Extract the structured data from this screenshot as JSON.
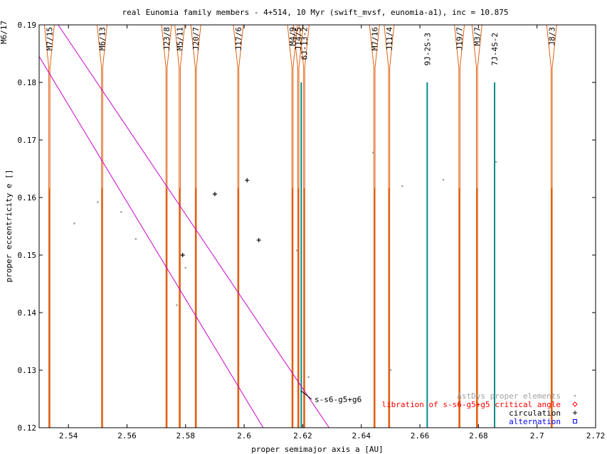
{
  "chart_data": {
    "type": "scatter",
    "title": "real Eunomia family members - 4+514, 10 Myr (swift_mvsf, eunomia-a1), inc = 10.875",
    "xlabel": "proper semimajor axis a [AU]",
    "ylabel": "proper eccentricity e []",
    "xlim": [
      2.53,
      2.72
    ],
    "ylim": [
      0.12,
      0.19
    ],
    "xticks": [
      "2.54",
      "2.56",
      "2.58",
      "2.6",
      "2.62",
      "2.64",
      "2.66",
      "2.68",
      "2.7",
      "2.72"
    ],
    "yticks": [
      "0.12",
      "0.13",
      "0.14",
      "0.15",
      "0.16",
      "0.17",
      "0.18",
      "0.19"
    ],
    "xtick_values": [
      2.54,
      2.56,
      2.58,
      2.6,
      2.62,
      2.64,
      2.66,
      2.68,
      2.7,
      2.72
    ],
    "ytick_values": [
      0.12,
      0.13,
      0.14,
      0.15,
      0.16,
      0.17,
      0.18,
      0.19
    ],
    "legend_position": "bottom-right",
    "colors": {
      "astdys": "#a0a0a0",
      "libration": "#ff0000",
      "circulation": "#000000",
      "alternation": "#0000ff",
      "resonance": "#e06010",
      "secular": "#cc00cc",
      "three_body": "#008b8b"
    },
    "series": [
      {
        "name": "AstDys proper elements",
        "marker": "dot",
        "points": [
          [
            2.542,
            0.1555
          ],
          [
            2.55,
            0.1592
          ],
          [
            2.558,
            0.1575
          ],
          [
            2.563,
            0.1528
          ],
          [
            2.577,
            0.1413
          ],
          [
            2.58,
            0.1478
          ],
          [
            2.618,
            0.1508
          ],
          [
            2.622,
            0.1288
          ],
          [
            2.644,
            0.1678
          ],
          [
            2.65,
            0.13
          ],
          [
            2.654,
            0.162
          ],
          [
            2.668,
            0.1631
          ],
          [
            2.686,
            0.1662
          ]
        ]
      },
      {
        "name": "libration of s-s6-g5+g5 critical angle",
        "marker": "diamond",
        "points": []
      },
      {
        "name": "circulation",
        "marker": "plus",
        "points": [
          [
            2.579,
            0.15
          ],
          [
            2.59,
            0.1606
          ],
          [
            2.601,
            0.163
          ],
          [
            2.605,
            0.1526
          ]
        ]
      },
      {
        "name": "alternation",
        "marker": "square",
        "points": []
      }
    ],
    "resonances": [
      {
        "label": "M7/15",
        "a": 2.5335
      },
      {
        "label": "M6/13",
        "a": 2.5515
      },
      {
        "label": "J23/8",
        "a": 2.5735
      },
      {
        "label": "M5/11",
        "a": 2.578
      },
      {
        "label": "J20/7",
        "a": 2.5835
      },
      {
        "label": "J17/6",
        "a": 2.598
      },
      {
        "label": "M4/9",
        "a": 2.6165
      },
      {
        "label": "J14/5",
        "a": 2.6185
      },
      {
        "label": "6J-13-2",
        "a": 2.6205
      },
      {
        "label": "M7/16",
        "a": 2.6445
      },
      {
        "label": "J11/4",
        "a": 2.6495
      },
      {
        "label": "J19/7",
        "a": 2.6735
      },
      {
        "label": "M3/7",
        "a": 2.6795
      },
      {
        "label": "J8/3",
        "a": 2.705
      }
    ],
    "three_body": [
      {
        "label": "9J-2S-3",
        "a": 2.6625,
        "emax": 0.18
      },
      {
        "label": "7J-4S-2",
        "a": 2.6855,
        "emax": 0.18
      },
      {
        "label": "",
        "a": 2.6195,
        "emax": 0.18
      }
    ],
    "secular": {
      "label": "s-s6-g5+g6",
      "lines": [
        [
          [
            2.5365,
            0.19
          ],
          [
            2.629,
            0.12
          ]
        ],
        [
          [
            2.53,
            0.1845
          ],
          [
            2.6065,
            0.12
          ]
        ]
      ]
    },
    "edge_label": "M6/17"
  }
}
